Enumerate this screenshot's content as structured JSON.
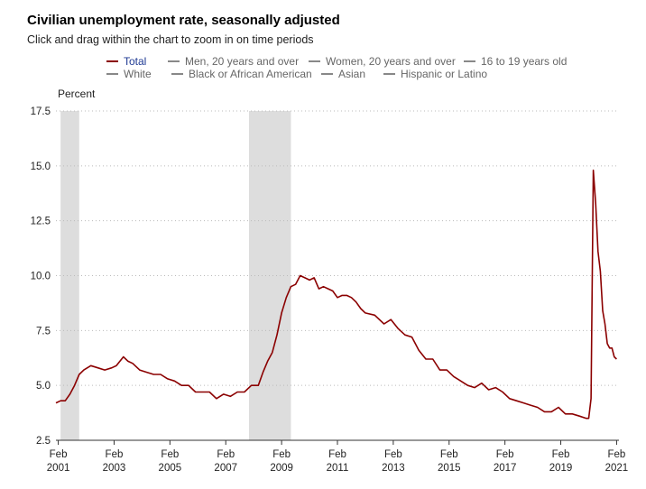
{
  "header": {
    "title": "Civilian unemployment rate, seasonally adjusted",
    "subtitle": "Click and drag within the chart to zoom in on time periods"
  },
  "legend": {
    "items": [
      {
        "label": "Total",
        "active": true
      },
      {
        "label": "Men, 20 years and over",
        "active": false
      },
      {
        "label": "Women, 20 years and over",
        "active": false
      },
      {
        "label": "16 to 19 years old",
        "active": false
      },
      {
        "label": "White",
        "active": false
      },
      {
        "label": "Black or African American",
        "active": false
      },
      {
        "label": "Asian",
        "active": false
      },
      {
        "label": "Hispanic or Latino",
        "active": false
      }
    ]
  },
  "colors": {
    "series": "#8b0000",
    "recession": "#dddddd",
    "legend_active_text": "#1f3a93",
    "legend_inactive": "#888888"
  },
  "chart_data": {
    "type": "line",
    "title": "Civilian unemployment rate, seasonally adjusted",
    "ylabel": "Percent",
    "xlabel": "",
    "ylim": [
      2.5,
      17.5
    ],
    "yticks": [
      "2.5",
      "5.0",
      "7.5",
      "10.0",
      "12.5",
      "15.0",
      "17.5"
    ],
    "xlim": [
      "2001-01",
      "2021-03"
    ],
    "xticks": [
      {
        "date": "2001-02",
        "month": "Feb",
        "year": "2001"
      },
      {
        "date": "2003-02",
        "month": "Feb",
        "year": "2003"
      },
      {
        "date": "2005-02",
        "month": "Feb",
        "year": "2005"
      },
      {
        "date": "2007-02",
        "month": "Feb",
        "year": "2007"
      },
      {
        "date": "2009-02",
        "month": "Feb",
        "year": "2009"
      },
      {
        "date": "2011-02",
        "month": "Feb",
        "year": "2011"
      },
      {
        "date": "2013-02",
        "month": "Feb",
        "year": "2013"
      },
      {
        "date": "2015-02",
        "month": "Feb",
        "year": "2015"
      },
      {
        "date": "2017-02",
        "month": "Feb",
        "year": "2017"
      },
      {
        "date": "2019-02",
        "month": "Feb",
        "year": "2019"
      },
      {
        "date": "2021-02",
        "month": "Feb",
        "year": "2021"
      }
    ],
    "grid": "horizontal dotted",
    "legend_position": "top",
    "recessions": [
      {
        "start": "2001-03",
        "end": "2001-11"
      },
      {
        "start": "2007-12",
        "end": "2009-06"
      }
    ],
    "series": [
      {
        "name": "Total",
        "points": [
          [
            "2001-01",
            4.2
          ],
          [
            "2001-03",
            4.3
          ],
          [
            "2001-05",
            4.3
          ],
          [
            "2001-07",
            4.6
          ],
          [
            "2001-09",
            5.0
          ],
          [
            "2001-11",
            5.5
          ],
          [
            "2002-01",
            5.7
          ],
          [
            "2002-04",
            5.9
          ],
          [
            "2002-07",
            5.8
          ],
          [
            "2002-10",
            5.7
          ],
          [
            "2003-01",
            5.8
          ],
          [
            "2003-03",
            5.9
          ],
          [
            "2003-06",
            6.3
          ],
          [
            "2003-08",
            6.1
          ],
          [
            "2003-10",
            6.0
          ],
          [
            "2004-01",
            5.7
          ],
          [
            "2004-04",
            5.6
          ],
          [
            "2004-07",
            5.5
          ],
          [
            "2004-10",
            5.5
          ],
          [
            "2005-01",
            5.3
          ],
          [
            "2005-04",
            5.2
          ],
          [
            "2005-07",
            5.0
          ],
          [
            "2005-10",
            5.0
          ],
          [
            "2006-01",
            4.7
          ],
          [
            "2006-04",
            4.7
          ],
          [
            "2006-07",
            4.7
          ],
          [
            "2006-10",
            4.4
          ],
          [
            "2007-01",
            4.6
          ],
          [
            "2007-04",
            4.5
          ],
          [
            "2007-07",
            4.7
          ],
          [
            "2007-10",
            4.7
          ],
          [
            "2008-01",
            5.0
          ],
          [
            "2008-04",
            5.0
          ],
          [
            "2008-06",
            5.6
          ],
          [
            "2008-08",
            6.1
          ],
          [
            "2008-10",
            6.5
          ],
          [
            "2008-12",
            7.3
          ],
          [
            "2009-02",
            8.3
          ],
          [
            "2009-04",
            9.0
          ],
          [
            "2009-06",
            9.5
          ],
          [
            "2009-08",
            9.6
          ],
          [
            "2009-10",
            10.0
          ],
          [
            "2009-12",
            9.9
          ],
          [
            "2010-02",
            9.8
          ],
          [
            "2010-04",
            9.9
          ],
          [
            "2010-06",
            9.4
          ],
          [
            "2010-08",
            9.5
          ],
          [
            "2010-10",
            9.4
          ],
          [
            "2010-12",
            9.3
          ],
          [
            "2011-02",
            9.0
          ],
          [
            "2011-04",
            9.1
          ],
          [
            "2011-06",
            9.1
          ],
          [
            "2011-08",
            9.0
          ],
          [
            "2011-10",
            8.8
          ],
          [
            "2011-12",
            8.5
          ],
          [
            "2012-02",
            8.3
          ],
          [
            "2012-06",
            8.2
          ],
          [
            "2012-10",
            7.8
          ],
          [
            "2013-01",
            8.0
          ],
          [
            "2013-04",
            7.6
          ],
          [
            "2013-07",
            7.3
          ],
          [
            "2013-10",
            7.2
          ],
          [
            "2014-01",
            6.6
          ],
          [
            "2014-04",
            6.2
          ],
          [
            "2014-07",
            6.2
          ],
          [
            "2014-10",
            5.7
          ],
          [
            "2015-01",
            5.7
          ],
          [
            "2015-04",
            5.4
          ],
          [
            "2015-07",
            5.2
          ],
          [
            "2015-10",
            5.0
          ],
          [
            "2016-01",
            4.9
          ],
          [
            "2016-04",
            5.1
          ],
          [
            "2016-07",
            4.8
          ],
          [
            "2016-10",
            4.9
          ],
          [
            "2017-01",
            4.7
          ],
          [
            "2017-04",
            4.4
          ],
          [
            "2017-07",
            4.3
          ],
          [
            "2017-10",
            4.2
          ],
          [
            "2018-01",
            4.1
          ],
          [
            "2018-04",
            4.0
          ],
          [
            "2018-07",
            3.8
          ],
          [
            "2018-10",
            3.8
          ],
          [
            "2019-01",
            4.0
          ],
          [
            "2019-04",
            3.7
          ],
          [
            "2019-07",
            3.7
          ],
          [
            "2019-10",
            3.6
          ],
          [
            "2020-01",
            3.5
          ],
          [
            "2020-02",
            3.5
          ],
          [
            "2020-03",
            4.4
          ],
          [
            "2020-04",
            14.8
          ],
          [
            "2020-05",
            13.3
          ],
          [
            "2020-06",
            11.1
          ],
          [
            "2020-07",
            10.2
          ],
          [
            "2020-08",
            8.4
          ],
          [
            "2020-09",
            7.8
          ],
          [
            "2020-10",
            6.9
          ],
          [
            "2020-11",
            6.7
          ],
          [
            "2020-12",
            6.7
          ],
          [
            "2021-01",
            6.3
          ],
          [
            "2021-02",
            6.2
          ]
        ]
      }
    ]
  }
}
